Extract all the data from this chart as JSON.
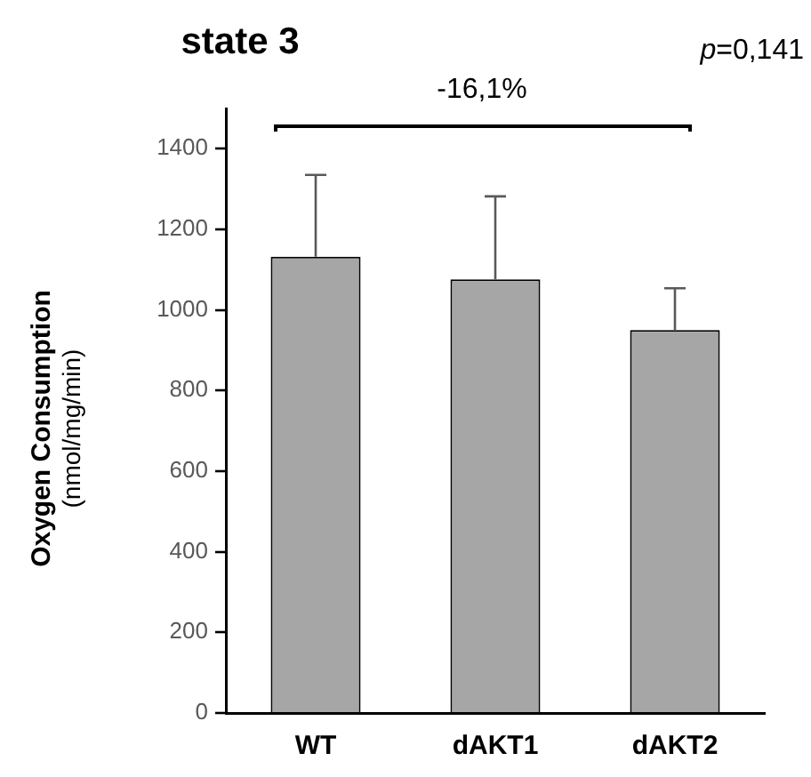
{
  "chart_data": {
    "type": "bar",
    "title": "state 3",
    "ylabel": "Oxygen Consumption (nmol/mg/min)",
    "categories": [
      "WT",
      "dAKT1",
      "dAKT2"
    ],
    "values": [
      1132,
      1076,
      950
    ],
    "color": "#a6a6a6",
    "errors": [
      [
        1132,
        1335
      ],
      [
        1076,
        1282
      ],
      [
        950,
        1054
      ]
    ],
    "ylim": [
      0,
      1500
    ],
    "yticks": [
      0,
      200,
      400,
      600,
      800,
      1000,
      1200,
      1400
    ],
    "annotations": [
      "-16,1%",
      "p=0,141"
    ],
    "legend": false
  }
}
